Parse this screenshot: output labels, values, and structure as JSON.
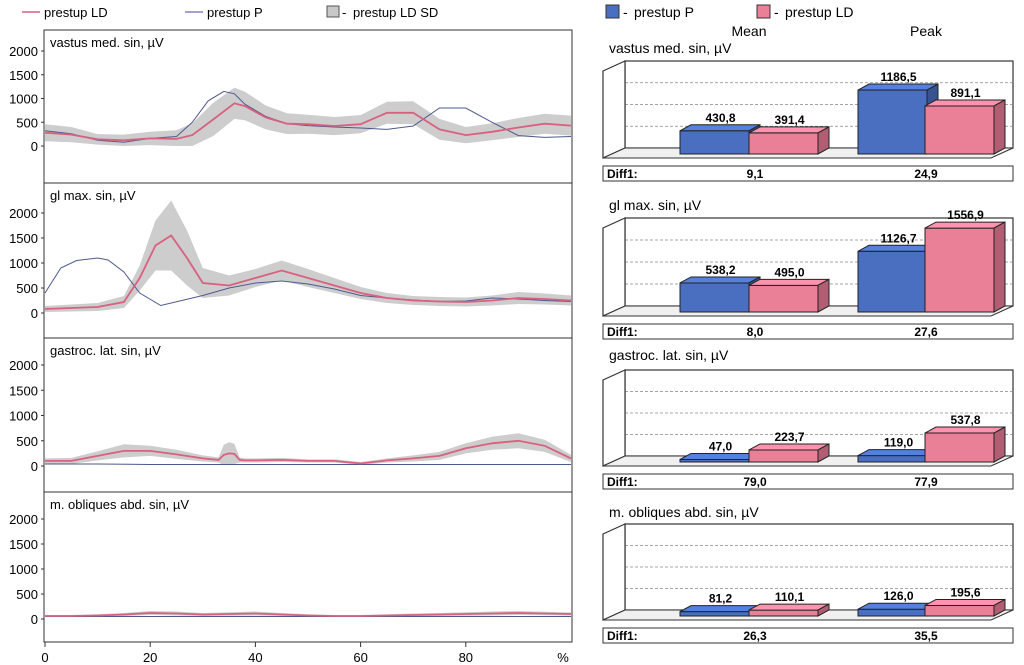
{
  "legend_left": [
    {
      "label": "prestup LD",
      "color": "#d9607e",
      "kind": "line"
    },
    {
      "label": "prestup P",
      "color": "#8a7fc4",
      "kind": "line"
    },
    {
      "label": "prestup LD SD",
      "color": "#c8c8c8",
      "kind": "box"
    }
  ],
  "legend_right": [
    {
      "label": "prestup P",
      "color": "#4a6fc0"
    },
    {
      "label": "prestup LD",
      "color": "#ea7f98"
    }
  ],
  "headers": {
    "mean": "Mean",
    "peak": "Peak"
  },
  "dash": "-",
  "diff_label": "Diff1:",
  "chart_data": [
    {
      "type": "line",
      "title": "vastus med. sin, µV",
      "y_ticks": [
        "2000",
        "1500",
        "1000",
        "500",
        "0"
      ],
      "x_ticks": [
        "0",
        "20",
        "40",
        "60",
        "80",
        "%"
      ],
      "ylim": [
        0,
        2000
      ],
      "xlim": [
        0,
        100
      ],
      "series": [
        {
          "name": "prestup LD",
          "x": [
            0,
            5,
            10,
            15,
            20,
            25,
            28,
            32,
            36,
            38,
            42,
            46,
            50,
            55,
            60,
            65,
            70,
            75,
            80,
            85,
            90,
            95,
            100
          ],
          "y": [
            280,
            240,
            140,
            120,
            160,
            150,
            230,
            560,
            900,
            840,
            600,
            470,
            460,
            420,
            460,
            700,
            700,
            350,
            230,
            300,
            390,
            470,
            430
          ]
        },
        {
          "name": "prestup P",
          "x": [
            0,
            5,
            10,
            15,
            20,
            25,
            28,
            31,
            34,
            36,
            38,
            42,
            46,
            50,
            55,
            60,
            65,
            70,
            75,
            80,
            85,
            90,
            95,
            100
          ],
          "y": [
            320,
            260,
            120,
            80,
            160,
            200,
            500,
            950,
            1150,
            1100,
            880,
            620,
            470,
            430,
            400,
            380,
            350,
            420,
            800,
            800,
            500,
            220,
            180,
            200
          ]
        },
        {
          "name": "prestup LD SD",
          "x": [
            0,
            5,
            10,
            15,
            20,
            25,
            28,
            32,
            36,
            38,
            42,
            46,
            50,
            55,
            60,
            65,
            70,
            75,
            80,
            85,
            90,
            95,
            100
          ],
          "y": [
            180,
            160,
            110,
            120,
            140,
            180,
            250,
            350,
            330,
            300,
            250,
            220,
            200,
            190,
            190,
            230,
            240,
            220,
            170,
            180,
            200,
            210,
            210
          ]
        }
      ]
    },
    {
      "type": "line",
      "title": "gl max. sin, µV",
      "y_ticks": [
        "2000",
        "1500",
        "1000",
        "500",
        "0"
      ],
      "ylim": [
        0,
        2000
      ],
      "series": [
        {
          "name": "prestup LD",
          "x": [
            0,
            5,
            10,
            15,
            18,
            21,
            24,
            27,
            30,
            35,
            40,
            45,
            50,
            55,
            60,
            65,
            70,
            75,
            80,
            85,
            90,
            95,
            100
          ],
          "y": [
            80,
            100,
            120,
            220,
            700,
            1350,
            1550,
            1100,
            600,
            550,
            700,
            850,
            700,
            550,
            400,
            300,
            250,
            230,
            220,
            250,
            300,
            280,
            250
          ]
        },
        {
          "name": "prestup P",
          "x": [
            0,
            3,
            6,
            10,
            12,
            15,
            18,
            22,
            26,
            30,
            35,
            40,
            45,
            50,
            55,
            60,
            65,
            70,
            75,
            80,
            85,
            90,
            95,
            100
          ],
          "y": [
            400,
            900,
            1050,
            1100,
            1060,
            820,
            400,
            150,
            250,
            350,
            500,
            600,
            640,
            580,
            480,
            350,
            300,
            260,
            230,
            240,
            300,
            280,
            250,
            230
          ]
        },
        {
          "name": "prestup LD SD",
          "x": [
            0,
            5,
            10,
            15,
            18,
            21,
            24,
            27,
            30,
            35,
            40,
            45,
            50,
            55,
            60,
            65,
            70,
            75,
            80,
            85,
            90,
            95,
            100
          ],
          "y": [
            60,
            70,
            80,
            120,
            250,
            500,
            700,
            550,
            300,
            200,
            180,
            200,
            180,
            150,
            120,
            100,
            90,
            90,
            90,
            100,
            120,
            110,
            100
          ]
        }
      ]
    },
    {
      "type": "line",
      "title": "gastroc. lat. sin, µV",
      "y_ticks": [
        "2000",
        "1500",
        "1000",
        "500",
        "0"
      ],
      "ylim": [
        0,
        2000
      ],
      "series": [
        {
          "name": "prestup LD",
          "x": [
            0,
            5,
            10,
            15,
            20,
            25,
            30,
            33,
            34,
            35,
            36,
            37,
            38,
            40,
            45,
            50,
            55,
            60,
            65,
            70,
            75,
            80,
            85,
            90,
            95,
            100
          ],
          "y": [
            100,
            100,
            200,
            300,
            300,
            230,
            150,
            120,
            220,
            250,
            240,
            120,
            110,
            110,
            120,
            100,
            100,
            50,
            110,
            150,
            200,
            350,
            450,
            500,
            400,
            150
          ]
        },
        {
          "name": "prestup P",
          "x": [
            0,
            10,
            20,
            30,
            40,
            50,
            60,
            70,
            80,
            90,
            100
          ],
          "y": [
            40,
            40,
            30,
            30,
            30,
            30,
            30,
            30,
            30,
            30,
            30
          ]
        },
        {
          "name": "prestup LD SD",
          "x": [
            0,
            5,
            10,
            15,
            20,
            25,
            30,
            33,
            34,
            35,
            36,
            37,
            38,
            40,
            45,
            50,
            55,
            60,
            65,
            70,
            75,
            80,
            85,
            90,
            95,
            100
          ],
          "y": [
            50,
            60,
            90,
            130,
            100,
            90,
            60,
            50,
            200,
            220,
            200,
            50,
            40,
            40,
            40,
            30,
            30,
            30,
            40,
            60,
            80,
            100,
            130,
            150,
            120,
            70
          ]
        }
      ]
    },
    {
      "type": "line",
      "title": "m. obliques abd. sin, µV",
      "y_ticks": [
        "2000",
        "1500",
        "1000",
        "500",
        "0"
      ],
      "ylim": [
        0,
        2000
      ],
      "series": [
        {
          "name": "prestup LD",
          "x": [
            0,
            5,
            10,
            15,
            20,
            25,
            30,
            35,
            40,
            45,
            50,
            55,
            60,
            65,
            70,
            75,
            80,
            85,
            90,
            95,
            100
          ],
          "y": [
            60,
            60,
            70,
            90,
            120,
            110,
            90,
            100,
            110,
            90,
            70,
            60,
            60,
            70,
            80,
            90,
            100,
            110,
            120,
            110,
            100
          ]
        },
        {
          "name": "prestup P",
          "x": [
            0,
            10,
            20,
            30,
            40,
            50,
            60,
            70,
            80,
            90,
            100
          ],
          "y": [
            50,
            50,
            50,
            50,
            50,
            50,
            50,
            50,
            50,
            50,
            50
          ]
        },
        {
          "name": "prestup LD SD",
          "x": [
            0,
            5,
            10,
            15,
            20,
            25,
            30,
            35,
            40,
            45,
            50,
            55,
            60,
            65,
            70,
            75,
            80,
            85,
            90,
            95,
            100
          ],
          "y": [
            20,
            20,
            25,
            30,
            40,
            40,
            30,
            35,
            40,
            30,
            25,
            20,
            20,
            25,
            30,
            30,
            35,
            40,
            40,
            35,
            30
          ]
        }
      ]
    },
    {
      "type": "bar",
      "title": "vastus med. sin, µV",
      "categories": [
        "Mean",
        "Peak"
      ],
      "ylim": [
        0,
        1800
      ],
      "series": [
        {
          "name": "prestup P",
          "values": [
            430.8,
            1186.5
          ],
          "labels": [
            "430,8",
            "1186,5"
          ]
        },
        {
          "name": "prestup LD",
          "values": [
            391.4,
            891.1
          ],
          "labels": [
            "391,4",
            "891,1"
          ]
        }
      ],
      "diff": [
        "9,1",
        "24,9"
      ]
    },
    {
      "type": "bar",
      "title": "gl max. sin, µV",
      "categories": [
        "Mean",
        "Peak"
      ],
      "ylim": [
        0,
        1800
      ],
      "series": [
        {
          "name": "prestup P",
          "values": [
            538.2,
            1126.7
          ],
          "labels": [
            "538,2",
            "1126,7"
          ]
        },
        {
          "name": "prestup LD",
          "values": [
            495.0,
            1556.9
          ],
          "labels": [
            "495,0",
            "1556,9"
          ]
        }
      ],
      "diff": [
        "8,0",
        "27,6"
      ]
    },
    {
      "type": "bar",
      "title": "gastroc. lat. sin, µV",
      "categories": [
        "Mean",
        "Peak"
      ],
      "ylim": [
        0,
        1800
      ],
      "series": [
        {
          "name": "prestup P",
          "values": [
            47.0,
            119.0
          ],
          "labels": [
            "47,0",
            "119,0"
          ]
        },
        {
          "name": "prestup LD",
          "values": [
            223.7,
            537.8
          ],
          "labels": [
            "223,7",
            "537,8"
          ]
        }
      ],
      "diff": [
        "79,0",
        "77,9"
      ]
    },
    {
      "type": "bar",
      "title": "m. obliques abd. sin, µV",
      "categories": [
        "Mean",
        "Peak"
      ],
      "ylim": [
        0,
        1800
      ],
      "series": [
        {
          "name": "prestup P",
          "values": [
            81.2,
            126.0
          ],
          "labels": [
            "81,2",
            "126,0"
          ]
        },
        {
          "name": "prestup LD",
          "values": [
            110.1,
            195.6
          ],
          "labels": [
            "110,1",
            "195,6"
          ]
        }
      ],
      "diff": [
        "26,3",
        "35,5"
      ]
    }
  ]
}
